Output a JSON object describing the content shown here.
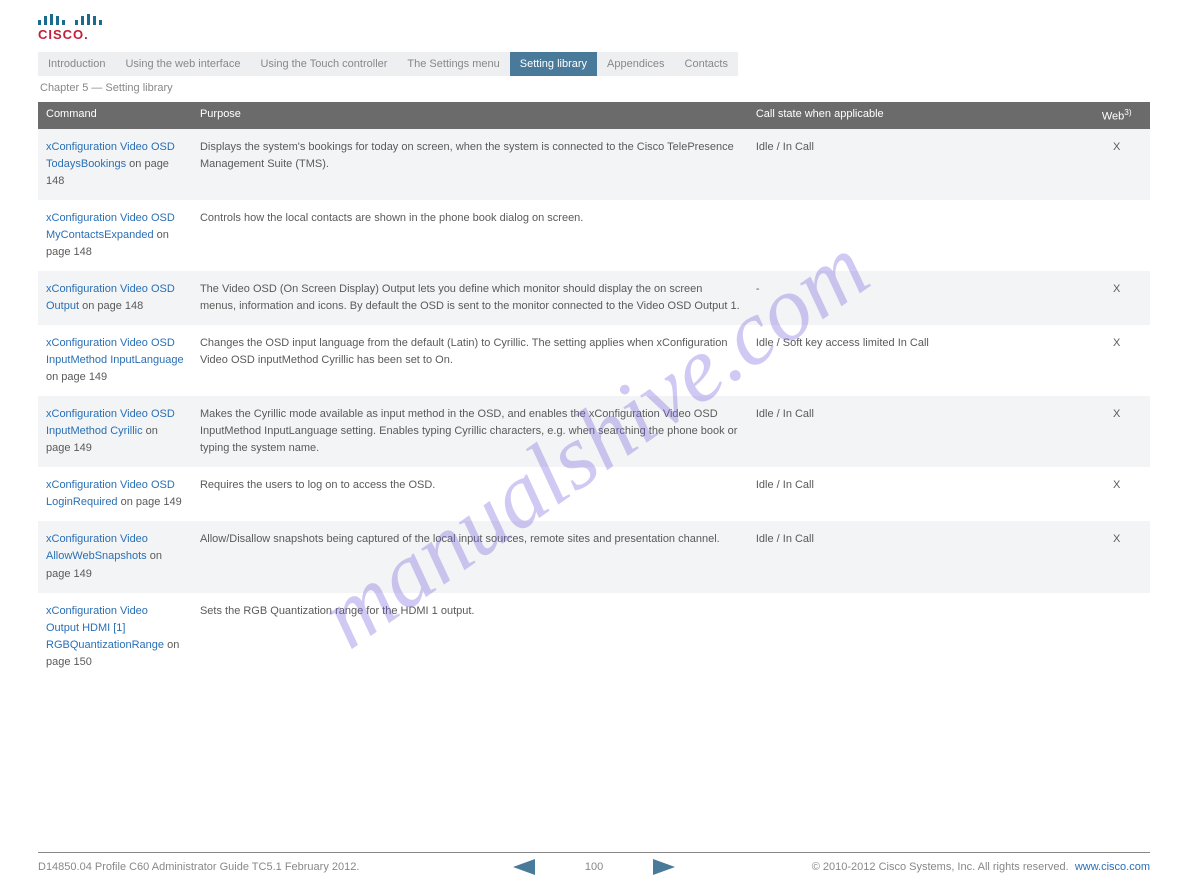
{
  "watermark": "manualshive.com",
  "tabs": [
    {
      "label": "Introduction",
      "active": false
    },
    {
      "label": "Using the web interface",
      "active": false
    },
    {
      "label": "Using the Touch controller",
      "active": false
    },
    {
      "label": "The Settings menu",
      "active": false
    },
    {
      "label": "Setting library",
      "active": true
    },
    {
      "label": "Appendices",
      "active": false
    },
    {
      "label": "Contacts",
      "active": false
    }
  ],
  "chapterTitle": "Chapter 5 — Setting library",
  "columns": {
    "command": "Command",
    "purpose": "Purpose",
    "call": "Call state when applicable",
    "web": "Web"
  },
  "rows": [
    {
      "cmd_link": "xConfiguration Video OSD TodaysBookings",
      "cmd_page": " on page 148",
      "purpose": "Displays the system's bookings for today on screen, when the system is connected to the Cisco TelePresence Management Suite (TMS).",
      "call": "Idle / In Call",
      "web": "X",
      "odd": true
    },
    {
      "cmd_link": "xConfiguration Video OSD MyContactsExpanded",
      "cmd_page": " on page 148",
      "purpose": "Controls how the local contacts are shown in the phone book dialog on screen.",
      "call": "",
      "web": "",
      "odd": false
    },
    {
      "cmd_link": "xConfiguration Video OSD Output",
      "cmd_page": " on page 148",
      "purpose": "The Video OSD (On Screen Display) Output lets you define which monitor should display the on screen menus, information and icons. By default the OSD is sent to the monitor connected to the Video OSD Output 1.",
      "call": "-",
      "web": "X",
      "odd": true
    },
    {
      "cmd_link": "xConfiguration Video OSD InputMethod InputLanguage",
      "cmd_page": " on page 149",
      "purpose": "Changes the OSD input language from the default (Latin) to Cyrillic. The setting applies when xConfiguration Video OSD inputMethod Cyrillic has been set to On.",
      "call": "Idle / Soft key access limited In Call",
      "web": "X",
      "odd": false
    },
    {
      "cmd_link": "xConfiguration Video OSD InputMethod Cyrillic",
      "cmd_page": " on page 149",
      "purpose": "Makes the Cyrillic mode available as input method in the OSD, and enables the xConfiguration Video OSD InputMethod InputLanguage setting. Enables typing Cyrillic characters, e.g. when searching the phone book or typing the system name.",
      "call": "Idle / In Call",
      "web": "X",
      "odd": true
    },
    {
      "cmd_link": "xConfiguration Video OSD LoginRequired",
      "cmd_page": " on page 149",
      "purpose": "Requires the users to log on to access the OSD.",
      "call": "Idle / In Call",
      "web": "X",
      "odd": false
    },
    {
      "cmd_link": "xConfiguration Video AllowWebSnapshots",
      "cmd_page": " on page 149",
      "purpose": "Allow/Disallow snapshots being captured of the local input sources, remote sites and presentation channel.",
      "call": "Idle / In Call",
      "web": "X",
      "odd": true
    },
    {
      "cmd_link": "xConfiguration Video Output HDMI [1] RGBQuantizationRange",
      "cmd_page": " on page 150",
      "purpose": "Sets the RGB Quantization range for the HDMI 1 output.",
      "call": "",
      "web": "",
      "odd": false
    }
  ],
  "footer": {
    "left": "D14850.04 Profile C60 Administrator Guide TC5.1 February 2012.",
    "pageNum": "100",
    "right": "www.cisco.com",
    "copyright": "© 2010-2012 Cisco Systems, Inc. All rights reserved."
  }
}
